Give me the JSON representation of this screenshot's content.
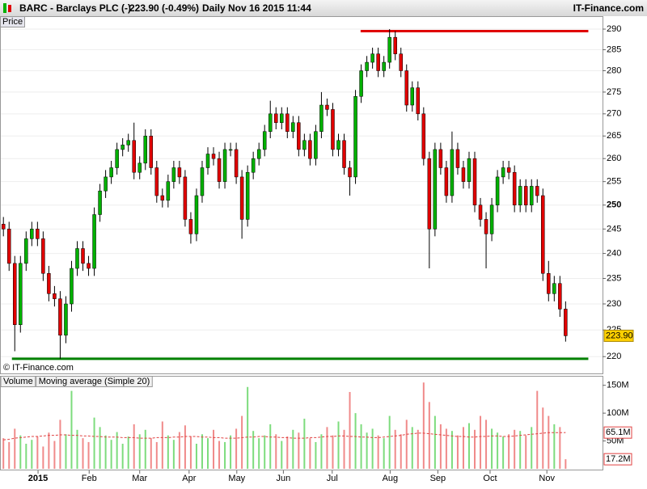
{
  "header": {
    "title": "BARC - Barclays PLC (-)",
    "last": "223.90 (-0.49%)",
    "period": "Daily",
    "timestamp": "Nov 16 2015 11:44",
    "source": "IT-Finance.com"
  },
  "chart_data": [
    {
      "type": "candlestick",
      "panel_label": "Price",
      "watermark": "© IT-Finance.com",
      "log_scale": true,
      "grid": true,
      "up_color": "#00b000",
      "down_color": "#e00000",
      "wick_color": "#000000",
      "xlim": [
        -0.6,
        105.5
      ],
      "ylim": [
        217.2,
        290.4
      ],
      "yticks": [
        220,
        225,
        230,
        235,
        240,
        245,
        250,
        255,
        260,
        265,
        270,
        275,
        280,
        285,
        290
      ],
      "x": [
        0,
        1,
        2,
        3,
        4,
        5,
        6,
        7,
        8,
        9,
        10,
        11,
        12,
        13,
        14,
        15,
        16,
        17,
        18,
        19,
        20,
        21,
        22,
        23,
        24,
        25,
        26,
        27,
        28,
        29,
        30,
        31,
        32,
        33,
        34,
        35,
        36,
        37,
        38,
        39,
        40,
        41,
        42,
        43,
        44,
        45,
        46,
        47,
        48,
        49,
        50,
        51,
        52,
        53,
        54,
        55,
        56,
        57,
        58,
        59,
        60,
        61,
        62,
        63,
        64,
        65,
        66,
        67,
        68,
        69,
        70,
        71,
        72,
        73,
        74,
        75,
        76,
        77,
        78,
        79,
        80,
        81,
        82,
        83,
        84,
        85,
        86,
        87,
        88,
        89,
        90,
        91,
        92,
        93,
        94,
        95,
        96,
        97,
        98,
        99
      ],
      "open": [
        246,
        245,
        238,
        226,
        238,
        243,
        245,
        243,
        236,
        232,
        231,
        224,
        230,
        237,
        241,
        238,
        237,
        248,
        253,
        256,
        258,
        262,
        263,
        264,
        257,
        259,
        265,
        258,
        252,
        251,
        255,
        258,
        256,
        247,
        244,
        252,
        258,
        261,
        260,
        255,
        262,
        262,
        256,
        247,
        257,
        260,
        262,
        266,
        270,
        268,
        270,
        266,
        268,
        262,
        264,
        260,
        266,
        272,
        271,
        262,
        264,
        258,
        256,
        274,
        280,
        282,
        284,
        280,
        282,
        288,
        284,
        280,
        272,
        276,
        270,
        260,
        245,
        262,
        258,
        252,
        262,
        258,
        255,
        260,
        250,
        247,
        244,
        250,
        256,
        258,
        257,
        250,
        254,
        250,
        254,
        252,
        236,
        232,
        234,
        229
      ],
      "high": [
        247.5,
        246.5,
        239.5,
        239.5,
        244.5,
        246.5,
        246.5,
        244.5,
        237.5,
        233.5,
        232.5,
        231.5,
        238.5,
        242.5,
        242.5,
        239.5,
        249.5,
        254.5,
        257.5,
        259.5,
        263.5,
        264.5,
        265.5,
        268,
        260.5,
        266.5,
        266.5,
        259.5,
        253.5,
        256.5,
        259.5,
        259.5,
        257.5,
        248.5,
        253.5,
        259.5,
        262.5,
        262.5,
        261.5,
        263.5,
        263.5,
        263.5,
        257.5,
        258.5,
        261.5,
        263.5,
        267.5,
        273,
        271.5,
        271.5,
        271.5,
        269.5,
        269.5,
        265.5,
        265.5,
        267.5,
        275,
        273.5,
        272.5,
        265.5,
        265.5,
        259.5,
        275.5,
        281.5,
        283.5,
        285.5,
        285.5,
        283.5,
        290,
        289.5,
        285.5,
        281.5,
        277.5,
        277.5,
        271.5,
        261.5,
        263.5,
        263.5,
        259.5,
        266,
        263.5,
        259.5,
        261.5,
        261.5,
        251.5,
        248.5,
        251.5,
        257.5,
        259.5,
        259.5,
        258.5,
        255.5,
        255.5,
        255.5,
        255.5,
        253.5,
        238.5,
        235.5,
        235.5,
        230.5
      ],
      "low": [
        243.5,
        236.5,
        221,
        224.5,
        236.5,
        241.5,
        241.5,
        234.5,
        230.5,
        229.5,
        219.6,
        222.5,
        228.5,
        235.5,
        236.5,
        235.5,
        235.5,
        246.5,
        251.5,
        254.5,
        256.5,
        260.5,
        261.5,
        255.5,
        255.5,
        257.5,
        256.5,
        250.5,
        249.5,
        249.5,
        253.5,
        254.5,
        245.5,
        242,
        242.5,
        250.5,
        256.5,
        258.5,
        253.5,
        253.5,
        260.5,
        254.5,
        243,
        245.5,
        255.5,
        258.5,
        260.5,
        264.5,
        266.5,
        266.5,
        264.5,
        264.5,
        260.5,
        260.5,
        258.5,
        258.5,
        264.5,
        269.5,
        260.5,
        260.5,
        256.5,
        252,
        254.5,
        272.5,
        278.5,
        280.5,
        278.5,
        278.5,
        280.5,
        282.5,
        278.5,
        270.5,
        270.5,
        268.5,
        258.5,
        237,
        243.5,
        256.5,
        250.5,
        250.5,
        256.5,
        253.5,
        253.5,
        248.5,
        245.5,
        237,
        242.5,
        248.5,
        254.5,
        255.5,
        248.5,
        248.5,
        248.5,
        248.5,
        250.5,
        234.5,
        230.5,
        230.5,
        227.5,
        222.8
      ],
      "close": [
        245,
        238,
        226,
        238,
        243,
        245,
        243,
        236,
        232,
        231,
        224,
        230,
        237,
        241,
        238,
        237,
        248,
        253,
        256,
        258,
        262,
        263,
        264,
        257,
        259,
        265,
        258,
        252,
        251,
        255,
        258,
        256,
        247,
        244,
        252,
        258,
        261,
        260,
        255,
        262,
        262,
        256,
        247,
        257,
        260,
        262,
        266,
        270,
        268,
        270,
        266,
        268,
        262,
        264,
        260,
        266,
        272,
        271,
        262,
        264,
        258,
        256,
        274,
        280,
        282,
        284,
        280,
        282,
        288,
        284,
        280,
        272,
        276,
        270,
        260,
        245,
        262,
        258,
        252,
        262,
        258,
        255,
        260,
        250,
        247,
        244,
        250,
        256,
        258,
        257,
        250,
        254,
        250,
        254,
        252,
        236,
        232,
        234,
        229,
        223.9
      ],
      "last_value_label": "223.90",
      "hlines": [
        {
          "value": 289.5,
          "color": "#e00000",
          "x": [
            62.9,
            103
          ]
        },
        {
          "value": 219.6,
          "color": "#008000",
          "x": [
            1.5,
            103
          ]
        }
      ]
    },
    {
      "type": "bar",
      "xlim": [
        -0.6,
        105.5
      ],
      "ylim": [
        0,
        167
      ],
      "yticks": [
        {
          "value": 50,
          "label": "50M"
        },
        {
          "value": 100,
          "label": "100M"
        },
        {
          "value": 150,
          "label": "150M"
        }
      ],
      "xticks": [
        {
          "value": 6.1,
          "label": "2015"
        },
        {
          "value": 15.1,
          "label": "Feb"
        },
        {
          "value": 24,
          "label": "Mar"
        },
        {
          "value": 32.7,
          "label": "Apr"
        },
        {
          "value": 41.1,
          "label": "May"
        },
        {
          "value": 49.3,
          "label": "Jun"
        },
        {
          "value": 57.9,
          "label": "Jul"
        },
        {
          "value": 68.1,
          "label": "Aug"
        },
        {
          "value": 76.5,
          "label": "Sep"
        },
        {
          "value": 85.7,
          "label": "Oct"
        },
        {
          "value": 95.7,
          "label": "Nov"
        }
      ],
      "up_color": "#7ddc7d",
      "down_color": "#f08a8a",
      "series": [
        {
          "name": "Volume",
          "type": "bar",
          "last_value_label": "17.2M",
          "values": [
            55,
            48,
            72,
            60,
            45,
            52,
            58,
            40,
            65,
            50,
            88,
            62,
            140,
            70,
            55,
            48,
            92,
            75,
            60,
            52,
            66,
            45,
            58,
            80,
            62,
            70,
            55,
            48,
            85,
            60,
            52,
            66,
            78,
            58,
            45,
            62,
            55,
            70,
            50,
            48,
            60,
            72,
            95,
            147,
            68,
            55,
            60,
            80,
            62,
            50,
            58,
            70,
            65,
            90,
            55,
            48,
            62,
            75,
            60,
            85,
            70,
            138,
            100,
            80,
            65,
            72,
            60,
            55,
            95,
            70,
            62,
            88,
            75,
            70,
            155,
            120,
            95,
            80,
            72,
            68,
            60,
            75,
            82,
            70,
            95,
            88,
            72,
            65,
            58,
            62,
            70,
            68,
            60,
            75,
            140,
            110,
            95,
            80,
            75,
            17.2
          ]
        },
        {
          "name": "Moving average (Simple 20)",
          "type": "line",
          "color": "#e04040",
          "last_value_label": "65.1M",
          "values": [
            52,
            53,
            55,
            56,
            57,
            58,
            58,
            59,
            60,
            60,
            61,
            61,
            60,
            60,
            59,
            59,
            58,
            58,
            57,
            57,
            57,
            56,
            56,
            56,
            55,
            55,
            55,
            56,
            56,
            56,
            57,
            57,
            58,
            58,
            58,
            57,
            57,
            56,
            56,
            55,
            55,
            55,
            56,
            57,
            57,
            58,
            58,
            57,
            57,
            56,
            56,
            55,
            55,
            55,
            56,
            56,
            57,
            58,
            58,
            59,
            59,
            58,
            58,
            57,
            57,
            56,
            56,
            57,
            58,
            59,
            60,
            62,
            63,
            64,
            64,
            63,
            62,
            61,
            60,
            59,
            58,
            58,
            57,
            57,
            58,
            58,
            59,
            59,
            58,
            58,
            59,
            60,
            61,
            62,
            63,
            64,
            65,
            65,
            65,
            65.1
          ]
        }
      ]
    }
  ]
}
